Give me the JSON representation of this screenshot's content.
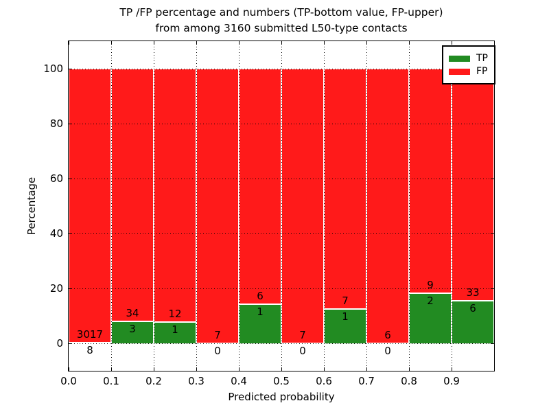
{
  "title": {
    "line1": "TP /FP percentage and numbers (TP-bottom value, FP-upper)",
    "line2": "from among 3160 submitted L50-type contacts"
  },
  "axes": {
    "ylabel": "Percentage",
    "xlabel": "Predicted probability",
    "y_ticks": [
      "0",
      "20",
      "40",
      "60",
      "80",
      "100"
    ],
    "x_ticks": [
      "0.0",
      "0.1",
      "0.2",
      "0.3",
      "0.4",
      "0.5",
      "0.6",
      "0.7",
      "0.8",
      "0.9"
    ]
  },
  "legend": {
    "items": [
      {
        "label": "TP",
        "color": "#228b22"
      },
      {
        "label": "FP",
        "color": "#ff1a1a"
      }
    ]
  },
  "colors": {
    "tp": "#228b22",
    "fp": "#ff1a1a",
    "grid": "#000000",
    "axis": "#000000",
    "background": "#ffffff"
  },
  "chart_data": {
    "type": "bar",
    "stacked": true,
    "normalized": "each bar scaled to 100%, green TP share at bottom, red FP share on top",
    "title": "TP /FP percentage and numbers (TP-bottom value, FP-upper) from among 3160 submitted L50-type contacts",
    "xlabel": "Predicted probability",
    "ylabel": "Percentage",
    "xlim": [
      0.0,
      1.0
    ],
    "ylim": [
      -10,
      110
    ],
    "y_gridlines": [
      0,
      20,
      40,
      60,
      80,
      100
    ],
    "grid": true,
    "legend_position": "upper right",
    "bin_width": 0.1,
    "total_contacts": 3160,
    "bins": [
      {
        "range": [
          0.0,
          0.1
        ],
        "tp": 8,
        "fp": 3017,
        "tp_percent": 0.26
      },
      {
        "range": [
          0.1,
          0.2
        ],
        "tp": 3,
        "fp": 34,
        "tp_percent": 8.11
      },
      {
        "range": [
          0.2,
          0.3
        ],
        "tp": 1,
        "fp": 12,
        "tp_percent": 7.69
      },
      {
        "range": [
          0.3,
          0.4
        ],
        "tp": 0,
        "fp": 7,
        "tp_percent": 0.0
      },
      {
        "range": [
          0.4,
          0.5
        ],
        "tp": 1,
        "fp": 6,
        "tp_percent": 14.29
      },
      {
        "range": [
          0.5,
          0.6
        ],
        "tp": 0,
        "fp": 7,
        "tp_percent": 0.0
      },
      {
        "range": [
          0.6,
          0.7
        ],
        "tp": 1,
        "fp": 7,
        "tp_percent": 12.5
      },
      {
        "range": [
          0.7,
          0.8
        ],
        "tp": 0,
        "fp": 6,
        "tp_percent": 0.0
      },
      {
        "range": [
          0.8,
          0.9
        ],
        "tp": 2,
        "fp": 9,
        "tp_percent": 18.18
      },
      {
        "range": [
          0.9,
          1.0
        ],
        "tp": 6,
        "fp": 33,
        "tp_percent": 15.38
      }
    ],
    "series": [
      {
        "name": "TP",
        "values": [
          8,
          3,
          1,
          0,
          1,
          0,
          1,
          0,
          2,
          6
        ]
      },
      {
        "name": "FP",
        "values": [
          3017,
          34,
          12,
          7,
          6,
          7,
          7,
          6,
          9,
          33
        ]
      }
    ]
  }
}
